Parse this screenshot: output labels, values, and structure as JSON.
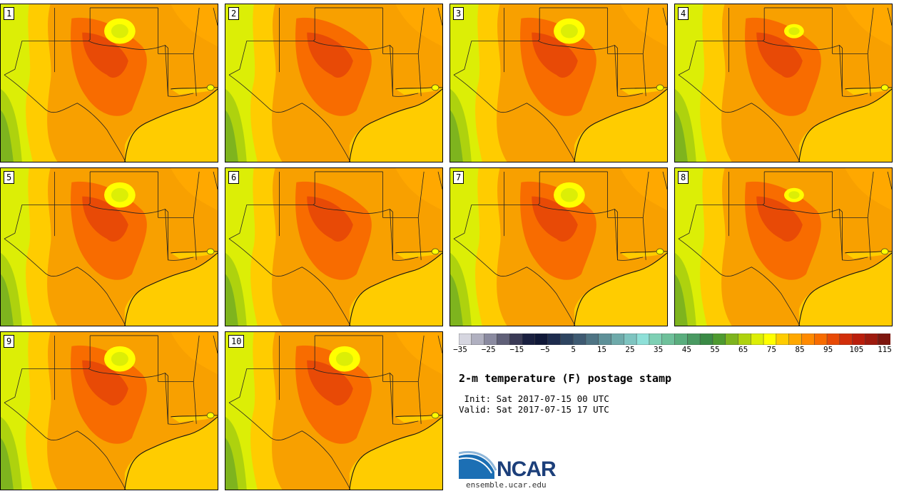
{
  "stamps": [
    {
      "label": "1",
      "hot_spot": "ok",
      "cool_spot": "ok"
    },
    {
      "label": "2",
      "hot_spot": "ok",
      "cool_spot": "none"
    },
    {
      "label": "3",
      "hot_spot": "ok",
      "cool_spot": "ok"
    },
    {
      "label": "4",
      "hot_spot": "ok",
      "cool_spot": "small"
    },
    {
      "label": "5",
      "hot_spot": "ok",
      "cool_spot": "ok"
    },
    {
      "label": "6",
      "hot_spot": "ok",
      "cool_spot": "none"
    },
    {
      "label": "7",
      "hot_spot": "ok",
      "cool_spot": "ok"
    },
    {
      "label": "8",
      "hot_spot": "ok",
      "cool_spot": "small"
    },
    {
      "label": "9",
      "hot_spot": "ok",
      "cool_spot": "ok"
    },
    {
      "label": "10",
      "hot_spot": "ok",
      "cool_spot": "ok"
    }
  ],
  "colorbar": {
    "colors": [
      "#d6d6e0",
      "#b0b0c0",
      "#8a8aa0",
      "#606078",
      "#3a3a56",
      "#1a2040",
      "#101838",
      "#1e2c4e",
      "#2e4460",
      "#3e5a72",
      "#4e7484",
      "#5e9098",
      "#6eaaaa",
      "#7ec4c0",
      "#8ee0d8",
      "#7ed0b4",
      "#6ec09a",
      "#5aae7e",
      "#4a9a62",
      "#3a8a46",
      "#4e9a30",
      "#7eb41e",
      "#aed20e",
      "#dcee06",
      "#ffff00",
      "#ffcc00",
      "#ffa800",
      "#ff8a00",
      "#f86c00",
      "#e84a06",
      "#d22e0a",
      "#ba1e0c",
      "#9e1a0e",
      "#7e160e"
    ],
    "ticks": [
      "−35",
      "−25",
      "−15",
      "−5",
      "5",
      "15",
      "25",
      "35",
      "45",
      "55",
      "65",
      "75",
      "85",
      "95",
      "105",
      "115"
    ]
  },
  "title": "2-m temperature (F) postage stamp",
  "init_line": " Init: Sat 2017-07-15 00 UTC",
  "valid_line": "Valid: Sat 2017-07-15 17 UTC",
  "logo": {
    "name": "NCAR",
    "url": "ensemble.ucar.edu",
    "color": "#1c3f7a"
  }
}
